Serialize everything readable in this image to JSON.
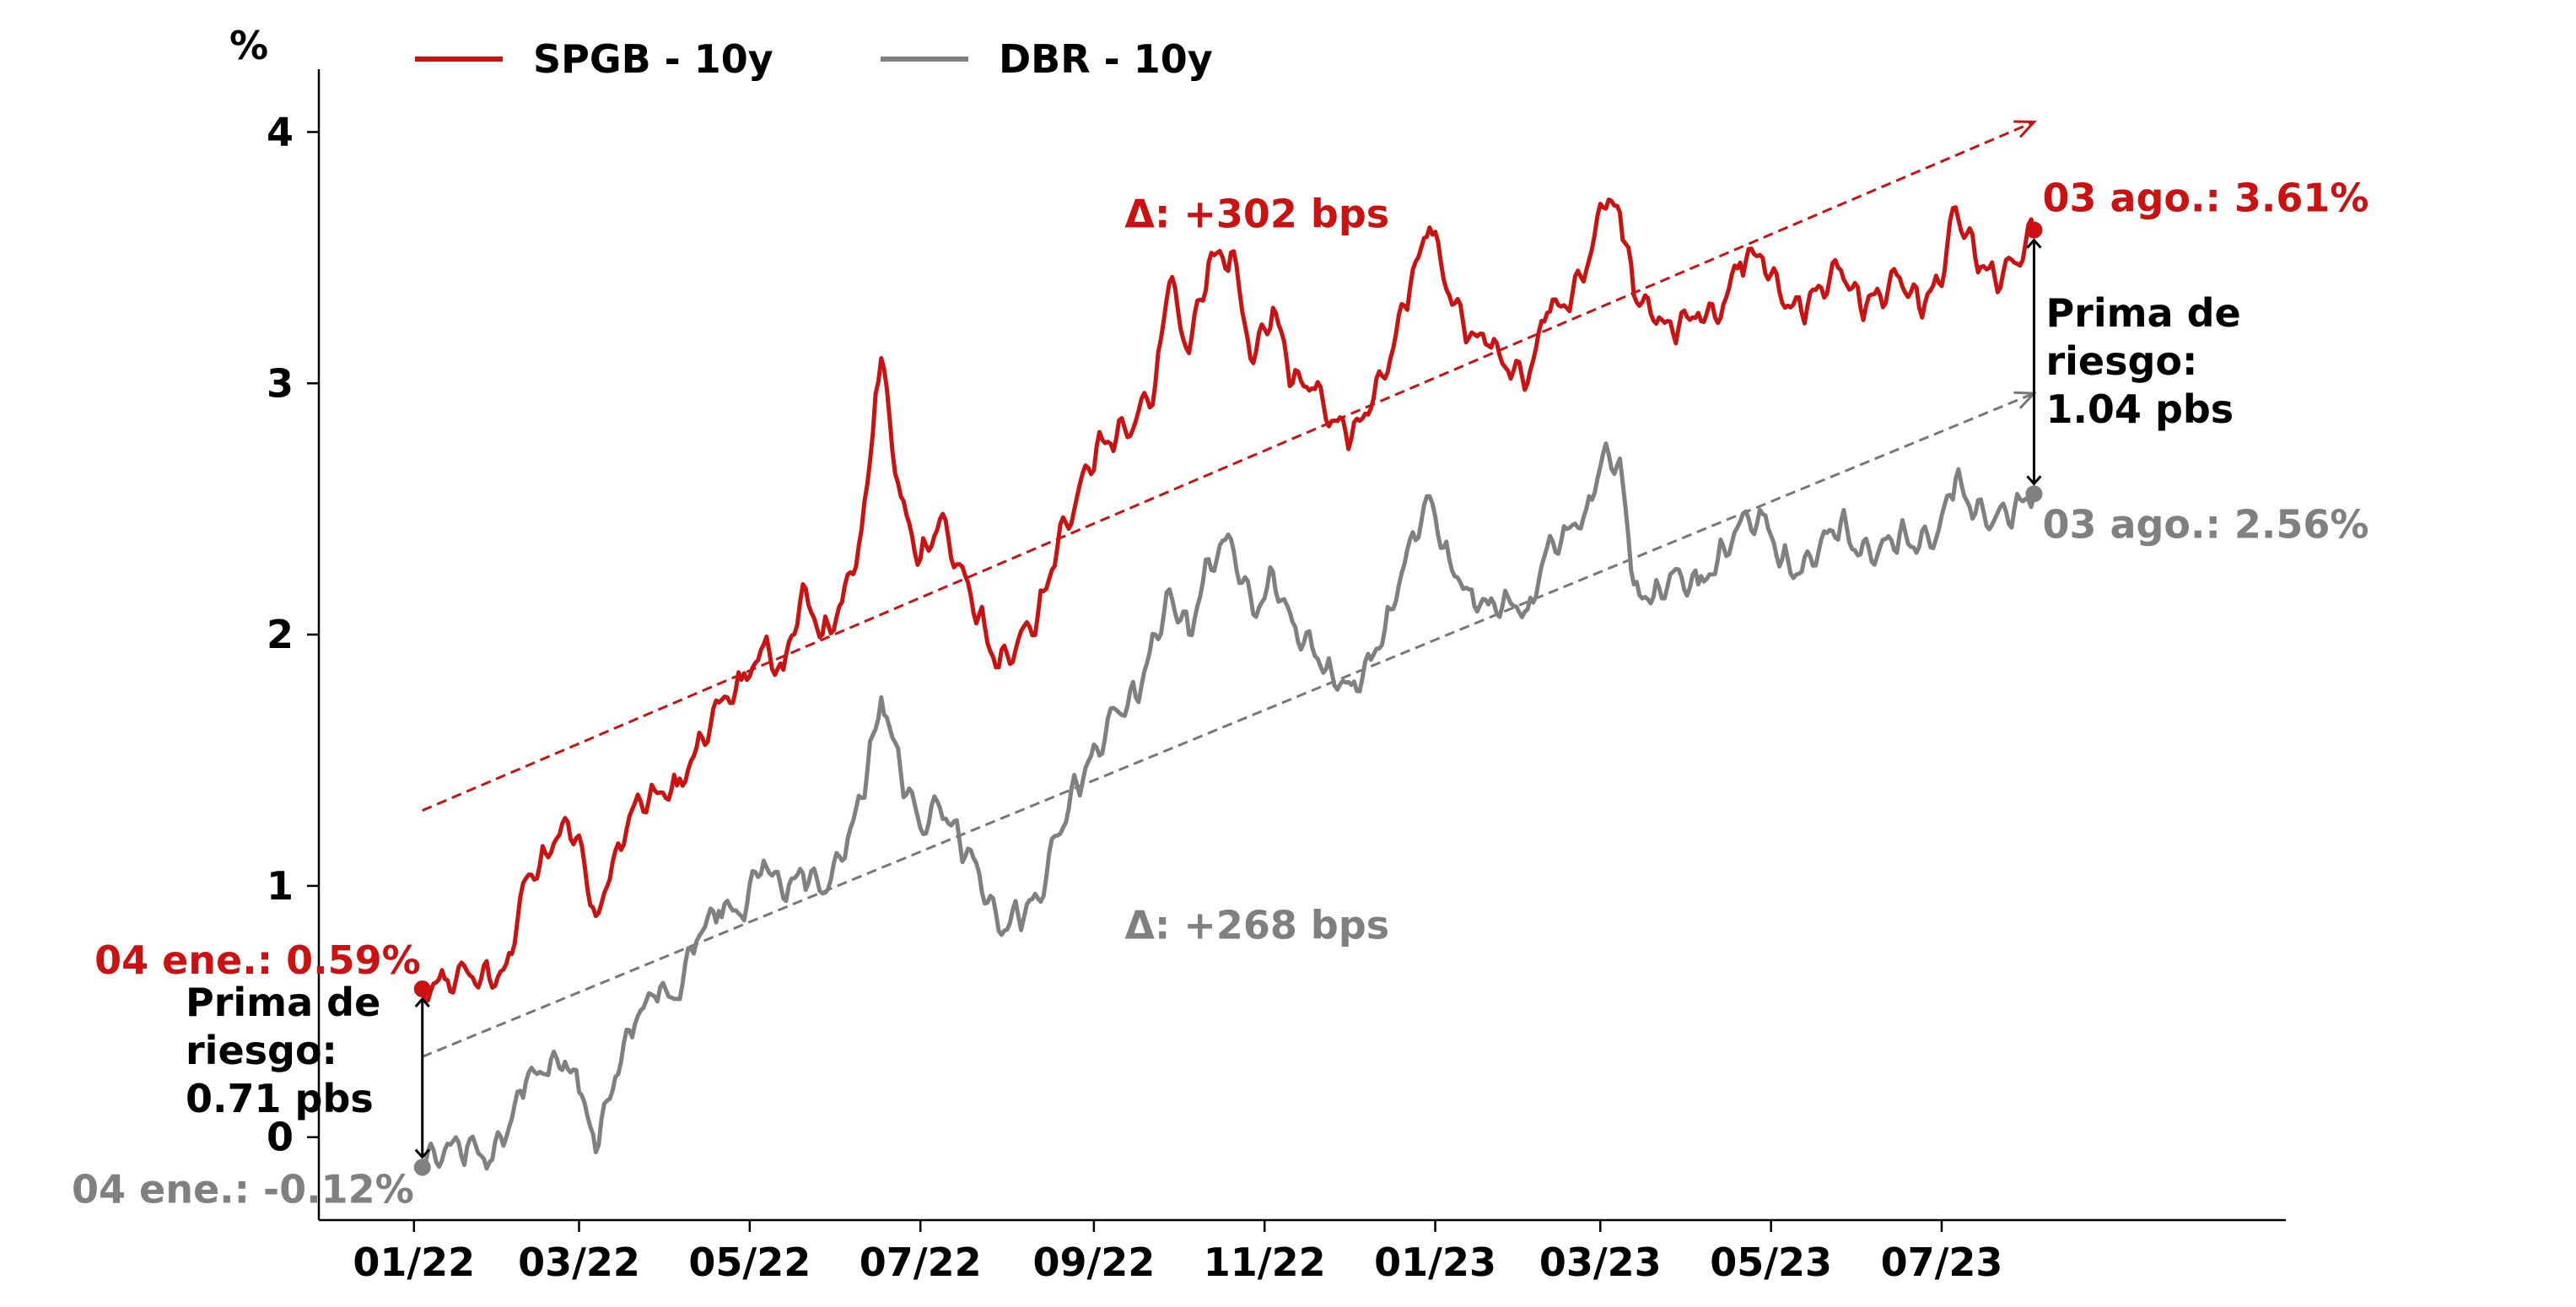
{
  "chart_data": {
    "type": "line",
    "ylabel": "%",
    "ylim": [
      -0.33,
      4.25
    ],
    "yticks": [
      0,
      1,
      2,
      3,
      4
    ],
    "xlim": [
      "2021-11-28",
      "2023-11-01"
    ],
    "xticks": [
      {
        "date": "2022-01-01",
        "label": "01/22"
      },
      {
        "date": "2022-03-01",
        "label": "03/22"
      },
      {
        "date": "2022-05-01",
        "label": "05/22"
      },
      {
        "date": "2022-07-01",
        "label": "07/22"
      },
      {
        "date": "2022-09-01",
        "label": "09/22"
      },
      {
        "date": "2022-11-01",
        "label": "11/22"
      },
      {
        "date": "2023-01-01",
        "label": "01/23"
      },
      {
        "date": "2023-03-01",
        "label": "03/23"
      },
      {
        "date": "2023-05-01",
        "label": "05/23"
      },
      {
        "date": "2023-07-01",
        "label": "07/23"
      }
    ],
    "series": [
      {
        "name": "SPGB - 10y",
        "color": "#cc1111",
        "points": [
          [
            "2022-01-04",
            0.59
          ],
          [
            "2022-01-12",
            0.63
          ],
          [
            "2022-01-20",
            0.66
          ],
          [
            "2022-01-28",
            0.63
          ],
          [
            "2022-02-03",
            0.69
          ],
          [
            "2022-02-10",
            1.03
          ],
          [
            "2022-02-17",
            1.13
          ],
          [
            "2022-02-24",
            1.27
          ],
          [
            "2022-03-01",
            1.2
          ],
          [
            "2022-03-07",
            0.88
          ],
          [
            "2022-03-14",
            1.14
          ],
          [
            "2022-03-21",
            1.33
          ],
          [
            "2022-03-28",
            1.38
          ],
          [
            "2022-04-05",
            1.4
          ],
          [
            "2022-04-12",
            1.55
          ],
          [
            "2022-04-20",
            1.73
          ],
          [
            "2022-04-28",
            1.82
          ],
          [
            "2022-05-06",
            1.96
          ],
          [
            "2022-05-13",
            1.86
          ],
          [
            "2022-05-20",
            2.2
          ],
          [
            "2022-05-27",
            2.0
          ],
          [
            "2022-06-03",
            2.13
          ],
          [
            "2022-06-10",
            2.42
          ],
          [
            "2022-06-14",
            2.8
          ],
          [
            "2022-06-17",
            3.1
          ],
          [
            "2022-06-24",
            2.55
          ],
          [
            "2022-07-01",
            2.3
          ],
          [
            "2022-07-08",
            2.46
          ],
          [
            "2022-07-15",
            2.28
          ],
          [
            "2022-07-22",
            2.08
          ],
          [
            "2022-07-29",
            1.87
          ],
          [
            "2022-08-05",
            1.98
          ],
          [
            "2022-08-12",
            2.08
          ],
          [
            "2022-08-19",
            2.35
          ],
          [
            "2022-08-26",
            2.55
          ],
          [
            "2022-09-02",
            2.75
          ],
          [
            "2022-09-09",
            2.78
          ],
          [
            "2022-09-16",
            2.85
          ],
          [
            "2022-09-23",
            3.0
          ],
          [
            "2022-09-28",
            3.4
          ],
          [
            "2022-10-05",
            3.12
          ],
          [
            "2022-10-12",
            3.48
          ],
          [
            "2022-10-20",
            3.52
          ],
          [
            "2022-10-28",
            3.08
          ],
          [
            "2022-11-04",
            3.3
          ],
          [
            "2022-11-11",
            3.0
          ],
          [
            "2022-11-18",
            2.98
          ],
          [
            "2022-11-25",
            2.85
          ],
          [
            "2022-12-02",
            2.78
          ],
          [
            "2022-12-09",
            2.9
          ],
          [
            "2022-12-16",
            3.1
          ],
          [
            "2022-12-23",
            3.38
          ],
          [
            "2022-12-30",
            3.62
          ],
          [
            "2023-01-06",
            3.35
          ],
          [
            "2023-01-13",
            3.18
          ],
          [
            "2023-01-20",
            3.15
          ],
          [
            "2023-01-27",
            3.05
          ],
          [
            "2023-02-03",
            3.0
          ],
          [
            "2023-02-10",
            3.28
          ],
          [
            "2023-02-17",
            3.3
          ],
          [
            "2023-02-24",
            3.45
          ],
          [
            "2023-03-02",
            3.7
          ],
          [
            "2023-03-08",
            3.68
          ],
          [
            "2023-03-13",
            3.35
          ],
          [
            "2023-03-20",
            3.25
          ],
          [
            "2023-03-27",
            3.2
          ],
          [
            "2023-04-05",
            3.28
          ],
          [
            "2023-04-12",
            3.24
          ],
          [
            "2023-04-20",
            3.48
          ],
          [
            "2023-04-28",
            3.5
          ],
          [
            "2023-05-05",
            3.32
          ],
          [
            "2023-05-12",
            3.28
          ],
          [
            "2023-05-19",
            3.38
          ],
          [
            "2023-05-26",
            3.45
          ],
          [
            "2023-06-02",
            3.3
          ],
          [
            "2023-06-09",
            3.35
          ],
          [
            "2023-06-16",
            3.42
          ],
          [
            "2023-06-23",
            3.3
          ],
          [
            "2023-06-30",
            3.4
          ],
          [
            "2023-07-06",
            3.7
          ],
          [
            "2023-07-13",
            3.5
          ],
          [
            "2023-07-20",
            3.42
          ],
          [
            "2023-07-27",
            3.48
          ],
          [
            "2023-08-03",
            3.61
          ]
        ]
      },
      {
        "name": "DBR - 10y",
        "color": "#808080",
        "points": [
          [
            "2022-01-04",
            -0.12
          ],
          [
            "2022-01-12",
            -0.05
          ],
          [
            "2022-01-20",
            -0.04
          ],
          [
            "2022-01-28",
            -0.1
          ],
          [
            "2022-02-03",
            0.0
          ],
          [
            "2022-02-10",
            0.22
          ],
          [
            "2022-02-17",
            0.25
          ],
          [
            "2022-02-24",
            0.3
          ],
          [
            "2022-03-01",
            0.18
          ],
          [
            "2022-03-07",
            -0.06
          ],
          [
            "2022-03-14",
            0.24
          ],
          [
            "2022-03-21",
            0.45
          ],
          [
            "2022-03-28",
            0.56
          ],
          [
            "2022-04-05",
            0.55
          ],
          [
            "2022-04-12",
            0.78
          ],
          [
            "2022-04-20",
            0.9
          ],
          [
            "2022-04-28",
            0.88
          ],
          [
            "2022-05-06",
            1.1
          ],
          [
            "2022-05-13",
            0.95
          ],
          [
            "2022-05-20",
            1.05
          ],
          [
            "2022-05-27",
            0.97
          ],
          [
            "2022-06-03",
            1.1
          ],
          [
            "2022-06-10",
            1.35
          ],
          [
            "2022-06-14",
            1.6
          ],
          [
            "2022-06-17",
            1.75
          ],
          [
            "2022-06-24",
            1.45
          ],
          [
            "2022-07-01",
            1.23
          ],
          [
            "2022-07-08",
            1.31
          ],
          [
            "2022-07-15",
            1.18
          ],
          [
            "2022-07-22",
            1.05
          ],
          [
            "2022-07-29",
            0.82
          ],
          [
            "2022-08-05",
            0.88
          ],
          [
            "2022-08-12",
            0.95
          ],
          [
            "2022-08-19",
            1.2
          ],
          [
            "2022-08-26",
            1.4
          ],
          [
            "2022-09-02",
            1.55
          ],
          [
            "2022-09-09",
            1.7
          ],
          [
            "2022-09-16",
            1.75
          ],
          [
            "2022-09-23",
            2.0
          ],
          [
            "2022-09-28",
            2.18
          ],
          [
            "2022-10-05",
            2.0
          ],
          [
            "2022-10-12",
            2.3
          ],
          [
            "2022-10-20",
            2.38
          ],
          [
            "2022-10-28",
            2.08
          ],
          [
            "2022-11-04",
            2.25
          ],
          [
            "2022-11-11",
            2.05
          ],
          [
            "2022-11-18",
            1.95
          ],
          [
            "2022-11-25",
            1.85
          ],
          [
            "2022-12-02",
            1.8
          ],
          [
            "2022-12-09",
            1.9
          ],
          [
            "2022-12-16",
            2.1
          ],
          [
            "2022-12-23",
            2.38
          ],
          [
            "2022-12-30",
            2.55
          ],
          [
            "2023-01-06",
            2.3
          ],
          [
            "2023-01-13",
            2.18
          ],
          [
            "2023-01-20",
            2.12
          ],
          [
            "2023-01-27",
            2.15
          ],
          [
            "2023-02-03",
            2.1
          ],
          [
            "2023-02-10",
            2.35
          ],
          [
            "2023-02-17",
            2.42
          ],
          [
            "2023-02-24",
            2.5
          ],
          [
            "2023-03-02",
            2.72
          ],
          [
            "2023-03-08",
            2.7
          ],
          [
            "2023-03-13",
            2.2
          ],
          [
            "2023-03-20",
            2.15
          ],
          [
            "2023-03-27",
            2.25
          ],
          [
            "2023-04-05",
            2.2
          ],
          [
            "2023-04-12",
            2.3
          ],
          [
            "2023-04-20",
            2.45
          ],
          [
            "2023-04-28",
            2.48
          ],
          [
            "2023-05-05",
            2.3
          ],
          [
            "2023-05-12",
            2.25
          ],
          [
            "2023-05-19",
            2.38
          ],
          [
            "2023-05-26",
            2.45
          ],
          [
            "2023-06-02",
            2.32
          ],
          [
            "2023-06-09",
            2.35
          ],
          [
            "2023-06-16",
            2.4
          ],
          [
            "2023-06-23",
            2.35
          ],
          [
            "2023-06-30",
            2.42
          ],
          [
            "2023-07-06",
            2.62
          ],
          [
            "2023-07-13",
            2.48
          ],
          [
            "2023-07-20",
            2.46
          ],
          [
            "2023-07-27",
            2.5
          ],
          [
            "2023-08-03",
            2.56
          ]
        ]
      }
    ],
    "trendlines": [
      {
        "color": "#cc1111",
        "from": [
          "2022-01-04",
          1.3
        ],
        "to": [
          "2023-08-03",
          4.04
        ]
      },
      {
        "color": "#777777",
        "from": [
          "2022-01-04",
          0.32
        ],
        "to": [
          "2023-08-03",
          2.96
        ]
      }
    ],
    "annotations": {
      "delta_spgb": {
        "text": "Δ: +302 bps",
        "color": "#cc1111",
        "at": [
          "2022-09-12",
          3.62
        ]
      },
      "delta_dbr": {
        "text": "Δ: +268 bps",
        "color": "#808080",
        "at": [
          "2022-09-12",
          0.79
        ]
      },
      "start_spgb": {
        "text": "04 ene.: 0.59%",
        "color": "#cc1111",
        "point": [
          "2022-01-04",
          0.59
        ]
      },
      "start_dbr": {
        "text": "04 ene.: -0.12%",
        "color": "#808080",
        "point": [
          "2022-01-04",
          -0.12
        ]
      },
      "end_spgb": {
        "text": "03 ago.: 3.61%",
        "color": "#cc1111",
        "point": [
          "2023-08-03",
          3.61
        ]
      },
      "end_dbr": {
        "text": "03 ago.: 2.56%",
        "color": "#808080",
        "point": [
          "2023-08-03",
          2.56
        ]
      },
      "premium_start": {
        "lines": [
          "Prima de",
          "riesgo:",
          "0.71 pbs"
        ],
        "color": "#000000",
        "date": "2022-01-04",
        "from": 0.59,
        "to": -0.12
      },
      "premium_end": {
        "lines": [
          "Prima de",
          "riesgo:",
          "1.04 pbs"
        ],
        "color": "#000000",
        "date": "2023-08-03",
        "from": 3.61,
        "to": 2.56
      }
    },
    "legend": "top-left",
    "grid": false
  }
}
